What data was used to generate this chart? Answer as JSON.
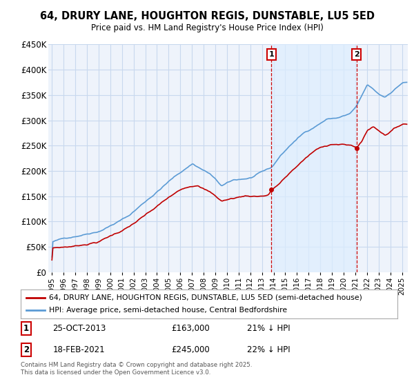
{
  "title": "64, DRURY LANE, HOUGHTON REGIS, DUNSTABLE, LU5 5ED",
  "subtitle": "Price paid vs. HM Land Registry's House Price Index (HPI)",
  "ylabel_ticks": [
    "£0",
    "£50K",
    "£100K",
    "£150K",
    "£200K",
    "£250K",
    "£300K",
    "£350K",
    "£400K",
    "£450K"
  ],
  "ylim": [
    0,
    450000
  ],
  "yticks": [
    0,
    50000,
    100000,
    150000,
    200000,
    250000,
    300000,
    350000,
    400000,
    450000
  ],
  "hpi_color": "#5b9bd5",
  "price_color": "#c00000",
  "vline_color": "#cc0000",
  "shade_color": "#ddeeff",
  "annotation1": [
    "1",
    "25-OCT-2013",
    "£163,000",
    "21% ↓ HPI"
  ],
  "annotation2": [
    "2",
    "18-FEB-2021",
    "£245,000",
    "22% ↓ HPI"
  ],
  "legend1": "64, DRURY LANE, HOUGHTON REGIS, DUNSTABLE, LU5 5ED (semi-detached house)",
  "legend2": "HPI: Average price, semi-detached house, Central Bedfordshire",
  "footer": "Contains HM Land Registry data © Crown copyright and database right 2025.\nThis data is licensed under the Open Government Licence v3.0.",
  "bg_color": "#ffffff",
  "plot_bg_color": "#eef3fb",
  "grid_color": "#c8d8ee",
  "x_start_year": 1995,
  "x_end_year": 2025,
  "t1": 2013.8,
  "t2": 2021.1
}
